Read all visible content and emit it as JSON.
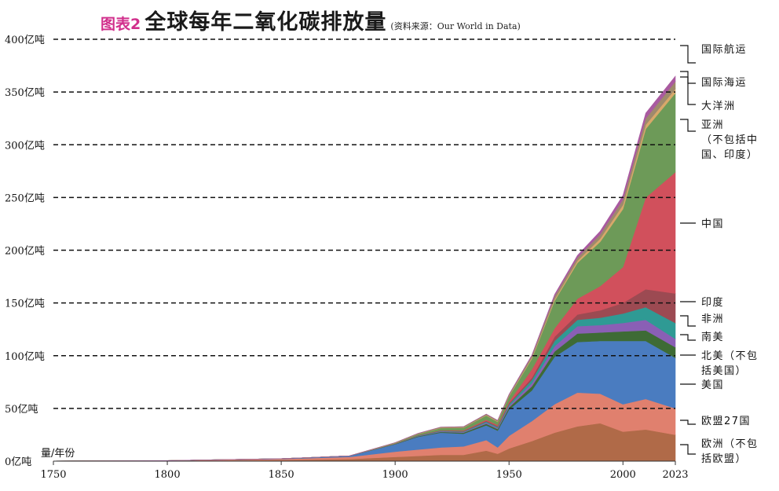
{
  "header": {
    "figure_label": "图表2",
    "title": "全球每年二氧化碳排放量",
    "source": "(资料来源：Our World in Data)"
  },
  "chart_data": {
    "type": "area",
    "stacked": true,
    "unit_label": "量/年份",
    "x": [
      1750,
      1800,
      1850,
      1880,
      1900,
      1910,
      1920,
      1930,
      1940,
      1945,
      1950,
      1960,
      1970,
      1980,
      1990,
      2000,
      2010,
      2023
    ],
    "xticks": [
      1750,
      1800,
      1850,
      1900,
      1950,
      2000,
      2023
    ],
    "ylim": [
      0,
      400
    ],
    "yticks": [
      0,
      50,
      100,
      150,
      200,
      250,
      300,
      350,
      400
    ],
    "ytick_labels": [
      "0亿吨",
      "50亿吨",
      "100亿吨",
      "150亿吨",
      "200亿吨",
      "250亿吨",
      "300亿吨",
      "350亿吨",
      "400亿吨"
    ],
    "grid": "dashed horizontal",
    "series": [
      {
        "name": "欧洲（不包括欧盟）",
        "color": "#b06a48",
        "values": [
          0.1,
          0.3,
          1,
          2,
          4,
          5,
          6,
          6,
          10,
          7,
          12,
          19,
          27,
          33,
          36,
          28,
          30,
          25
        ]
      },
      {
        "name": "欧盟27国",
        "color": "#e0806e",
        "values": [
          0.05,
          0.2,
          1,
          2,
          5,
          6,
          7,
          8,
          10,
          6,
          12,
          19,
          27,
          32,
          28,
          26,
          29,
          25
        ]
      },
      {
        "name": "美国",
        "color": "#4a7cc0",
        "values": [
          0,
          0.03,
          0.3,
          1,
          7,
          12,
          14,
          12,
          14,
          16,
          25,
          29,
          45,
          48,
          50,
          60,
          55,
          48
        ]
      },
      {
        "name": "北美（不包括美国）",
        "color": "#3e6b35",
        "values": [
          0,
          0,
          0.05,
          0.1,
          0.3,
          0.6,
          0.8,
          1,
          1.5,
          1.5,
          2,
          4,
          5,
          8,
          8,
          9,
          10,
          10
        ]
      },
      {
        "name": "南美",
        "color": "#8a5fb5",
        "values": [
          0,
          0,
          0,
          0,
          0.1,
          0.3,
          0.5,
          0.6,
          1,
          1,
          1.5,
          3,
          5,
          7,
          7,
          8,
          10,
          8
        ]
      },
      {
        "name": "非洲",
        "color": "#2f9a94",
        "values": [
          0,
          0,
          0,
          0,
          0.1,
          0.3,
          0.5,
          0.6,
          1,
          1,
          1.5,
          3,
          5,
          6,
          7,
          9,
          12,
          15
        ]
      },
      {
        "name": "印度",
        "color": "#9c4a52",
        "values": [
          0,
          0,
          0,
          0,
          0.1,
          0.2,
          0.3,
          0.5,
          0.8,
          0.8,
          1,
          2,
          4,
          5,
          7,
          10,
          17,
          28
        ]
      },
      {
        "name": "中国",
        "color": "#d1505c",
        "values": [
          0,
          0,
          0,
          0,
          0.1,
          0.2,
          0.3,
          0.5,
          1,
          1,
          1.5,
          8,
          8,
          15,
          23,
          34,
          87,
          115
        ]
      },
      {
        "name": "亚洲（不包括中国、印度）",
        "color": "#6d9a58",
        "values": [
          0,
          0,
          0,
          0,
          0.5,
          1,
          2,
          2.5,
          4,
          3,
          5,
          10,
          26,
          34,
          42,
          55,
          65,
          75
        ]
      },
      {
        "name": "大洋洲",
        "color": "#d8a86a",
        "values": [
          0,
          0,
          0,
          0,
          0.1,
          0.2,
          0.3,
          0.3,
          0.5,
          0.5,
          0.6,
          1,
          1.5,
          2,
          3,
          4,
          4,
          4
        ]
      },
      {
        "name": "国际海运",
        "color": "#9e8a6c",
        "values": [
          0,
          0,
          0,
          0,
          0.3,
          0.5,
          0.6,
          0.7,
          0.8,
          0.8,
          1,
          2,
          3,
          3,
          4,
          5,
          6,
          7
        ]
      },
      {
        "name": "国际航运",
        "color": "#a95aa0",
        "values": [
          0,
          0,
          0,
          0,
          0,
          0,
          0,
          0,
          0,
          0,
          0.2,
          0.5,
          1.5,
          2,
          3,
          4,
          5,
          5
        ]
      }
    ],
    "legend_labels": [
      {
        "series": "国际航运",
        "lines": [
          "国际航运"
        ]
      },
      {
        "series": "国际海运",
        "lines": [
          "国际海运"
        ]
      },
      {
        "series": "大洋洲",
        "lines": [
          "大洋洲"
        ]
      },
      {
        "series": "亚洲（不包括中国、印度）",
        "lines": [
          "亚洲",
          "（不包括中",
          "国、印度）"
        ]
      },
      {
        "series": "中国",
        "lines": [
          "中国"
        ]
      },
      {
        "series": "印度",
        "lines": [
          "印度"
        ]
      },
      {
        "series": "非洲",
        "lines": [
          "非洲"
        ]
      },
      {
        "series": "南美",
        "lines": [
          "南美"
        ]
      },
      {
        "series": "北美（不包括美国）",
        "lines": [
          "北美（不包",
          "括美国）"
        ]
      },
      {
        "series": "美国",
        "lines": [
          "美国"
        ]
      },
      {
        "series": "欧盟27国",
        "lines": [
          "欧盟27国"
        ]
      },
      {
        "series": "欧洲（不包括欧盟）",
        "lines": [
          "欧洲（不包",
          "括欧盟）"
        ]
      }
    ]
  }
}
